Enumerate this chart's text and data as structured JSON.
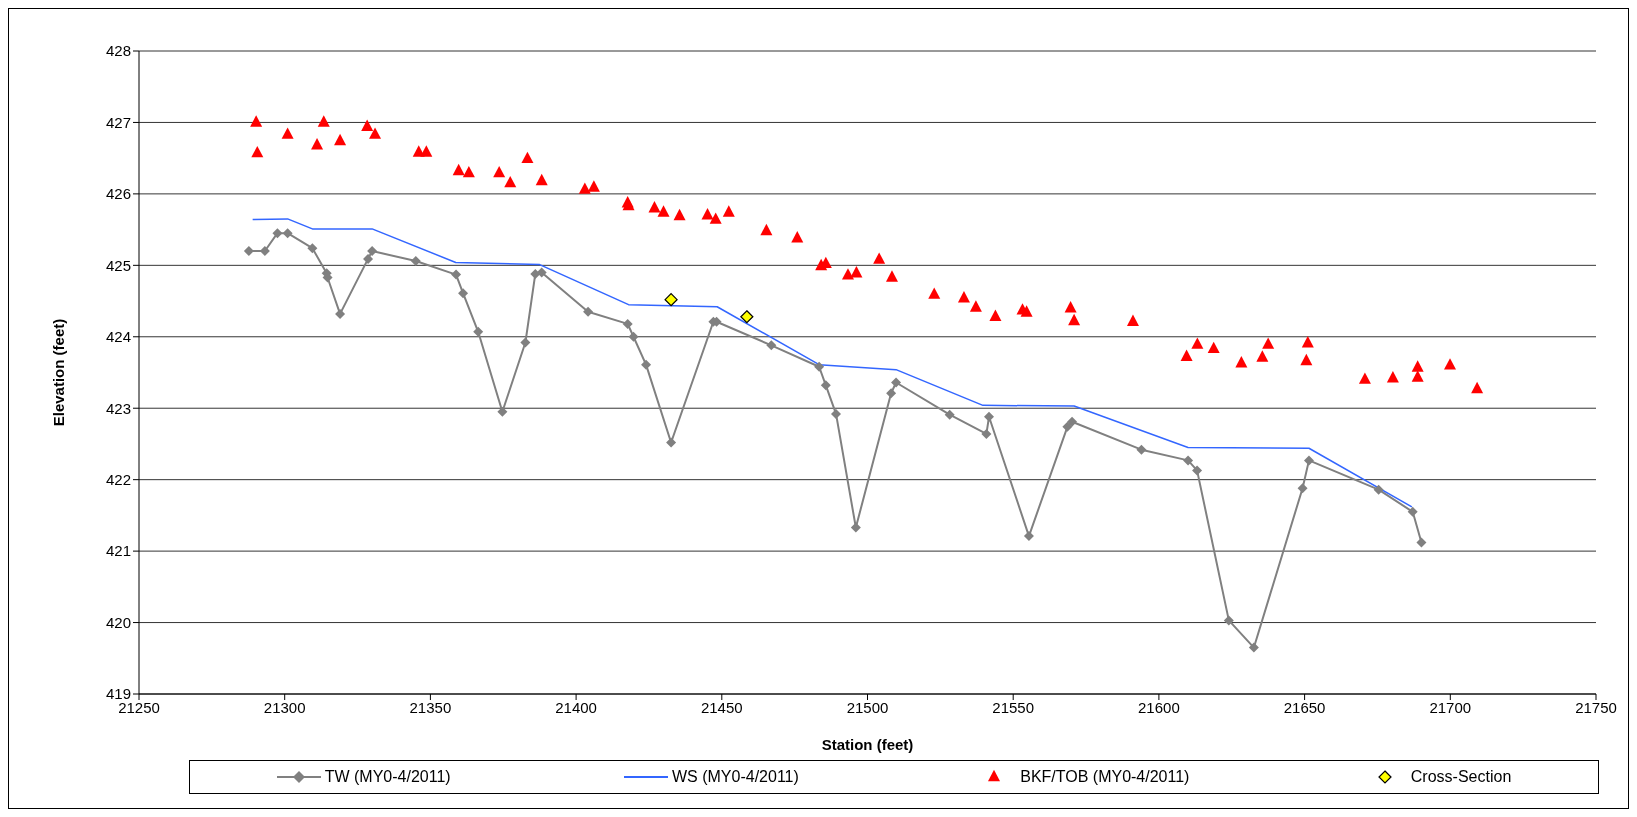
{
  "chart_data": {
    "type": "scatter",
    "xlabel": "Station (feet)",
    "ylabel": "Elevation (feet)",
    "xlim": [
      21250,
      21750
    ],
    "xticks": [
      21250,
      21300,
      21350,
      21400,
      21450,
      21500,
      21550,
      21600,
      21650,
      21700,
      21750
    ],
    "ylim": [
      419,
      428
    ],
    "yticks": [
      419,
      420,
      421,
      422,
      423,
      424,
      425,
      426,
      427,
      428
    ],
    "grid": "y",
    "legend": "bottom",
    "series": [
      {
        "name": "TW (MY0-4/2011)",
        "type": "line",
        "marker": "diamond",
        "color": "#808080",
        "x": [
          21287.7,
          21293.2,
          21297.5,
          21301,
          21309.5,
          21314.4,
          21314.7,
          21319,
          21328.6,
          21330,
          21345,
          21358.8,
          21361.2,
          21366.4,
          21374.7,
          21382.6,
          21386,
          21388.2,
          21404.1,
          21417.7,
          21419.7,
          21424,
          21432.6,
          21447.1,
          21448.2,
          21467,
          21483.4,
          21485.7,
          21489.2,
          21496,
          21508.1,
          21509.8,
          21528.2,
          21540.8,
          21541.7,
          21555.4,
          21568.6,
          21570.2,
          21594,
          21610,
          21613.1,
          21624,
          21632.6,
          21649.3,
          21651.5,
          21675.4,
          21687.1,
          21690.1
        ],
        "values": [
          425.2,
          425.2,
          425.45,
          425.45,
          425.24,
          424.89,
          424.83,
          424.32,
          425.09,
          425.2,
          425.06,
          424.87,
          424.61,
          424.07,
          422.95,
          423.92,
          424.88,
          424.9,
          424.35,
          424.18,
          424,
          423.61,
          422.52,
          424.21,
          424.21,
          423.88,
          423.58,
          423.32,
          422.92,
          421.33,
          423.21,
          423.36,
          422.91,
          422.64,
          422.88,
          421.21,
          422.74,
          422.81,
          422.42,
          422.27,
          422.13,
          420.03,
          419.65,
          421.88,
          422.27,
          421.86,
          421.55,
          421.12
        ]
      },
      {
        "name": "WS (MY0-4/2011)",
        "type": "line",
        "marker": "none",
        "color": "#3366ff",
        "x": [
          21289,
          21301,
          21309.5,
          21330,
          21358.7,
          21387.5,
          21418,
          21448.4,
          21483.4,
          21509.8,
          21539.6,
          21570.9,
          21610,
          21651.5,
          21686.8
        ],
        "values": [
          425.64,
          425.65,
          425.51,
          425.51,
          425.04,
          425.01,
          424.45,
          424.42,
          423.61,
          423.54,
          423.04,
          423.03,
          422.45,
          422.44,
          421.62
        ]
      },
      {
        "name": "BKF/TOB (MY0-4/2011)",
        "type": "scatter",
        "marker": "triangle",
        "color": "#ff0000",
        "x": [
          21290.2,
          21290.6,
          21301,
          21311.1,
          21313.4,
          21319,
          21328.3,
          21331,
          21346,
          21348.6,
          21359.7,
          21363.2,
          21373.6,
          21377.4,
          21383.3,
          21388.2,
          21403,
          21406.1,
          21417.7,
          21418,
          21426.9,
          21430,
          21435.5,
          21445.1,
          21447.9,
          21452.4,
          21465.3,
          21475.9,
          21484.1,
          21485.7,
          21493.3,
          21496.2,
          21504,
          21508.4,
          21522.9,
          21533.1,
          21537.2,
          21543.9,
          21553.2,
          21554.6,
          21569.7,
          21570.9,
          21591.1,
          21609.5,
          21613.2,
          21618.8,
          21628.3,
          21635.5,
          21637.5,
          21651.1,
          21650.6,
          21670.7,
          21680.3,
          21688.8,
          21688.8,
          21699.9,
          21709.2
        ],
        "values": [
          427,
          426.57,
          426.83,
          426.68,
          427,
          426.74,
          426.94,
          426.83,
          426.58,
          426.58,
          426.32,
          426.29,
          426.29,
          426.15,
          426.49,
          426.18,
          426.06,
          426.09,
          425.87,
          425.83,
          425.8,
          425.74,
          425.69,
          425.7,
          425.64,
          425.74,
          425.48,
          425.38,
          424.99,
          425.02,
          424.86,
          424.89,
          425.08,
          424.83,
          424.59,
          424.54,
          424.41,
          424.28,
          424.37,
          424.34,
          424.4,
          424.22,
          424.21,
          423.72,
          423.89,
          423.83,
          423.63,
          423.71,
          423.89,
          423.91,
          423.66,
          423.4,
          423.42,
          423.57,
          423.43,
          423.6,
          423.27
        ]
      },
      {
        "name": "Cross-Section",
        "type": "scatter",
        "marker": "diamond",
        "color": "#ffff00",
        "x": [
          21432.6,
          21458.6
        ],
        "values": [
          424.52,
          424.28
        ]
      }
    ]
  }
}
